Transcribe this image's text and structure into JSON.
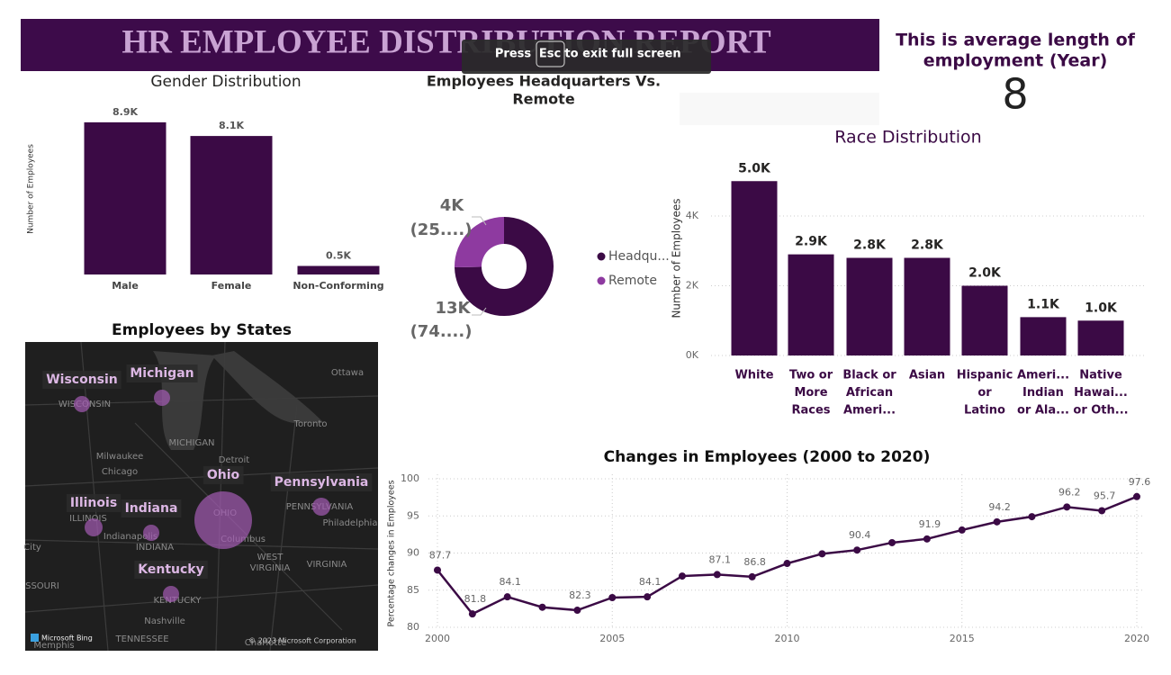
{
  "header": {
    "title": "HR EMPLOYEE DISTRIBUTION REPORT"
  },
  "overlay": {
    "press": "Press",
    "key": "Esc",
    "rest": "to exit full screen"
  },
  "kpi": {
    "label_lines": [
      "This is average length of",
      "employment (Year)"
    ],
    "value": 8
  },
  "map": {
    "title": "Employees by States",
    "states": [
      "Wisconsin",
      "Michigan",
      "Illinois",
      "Indiana",
      "Ohio",
      "Pennsylvania",
      "Kentucky"
    ],
    "places": [
      "WISCONSIN",
      "Ottawa",
      "Toronto",
      "MICHIGAN",
      "Milwaukee",
      "Chicago",
      "Detroit",
      "ILLINOIS",
      "Indianapolis",
      "INDIANA",
      "OHIO",
      "Columbus",
      "PENNSYLVANIA",
      "Philadelphia",
      "WEST",
      "VIRGINIA",
      "VIRGINIA",
      "KENTUCKY",
      "Nashville",
      "TENNESSEE",
      "SSOURI",
      "Memphis",
      "Charlotte",
      "City"
    ],
    "attribution": [
      "Microsoft Bing",
      "© 2023 Microsoft Corporation"
    ]
  },
  "chart_data": [
    {
      "type": "bar",
      "title": "Gender Distribution",
      "y_label": "Number of Employees",
      "categories": [
        "Male",
        "Female",
        "Non-Conforming"
      ],
      "values": [
        8900,
        8100,
        500
      ],
      "value_labels": [
        "8.9K",
        "8.1K",
        "0.5K"
      ],
      "color": "#3b0a45",
      "ylim": [
        0,
        9000
      ]
    },
    {
      "type": "donut",
      "title_lines": [
        "Employees Headquarters Vs.",
        "Remote"
      ],
      "categories": [
        "Headqu...",
        "Remote"
      ],
      "values": [
        13000,
        4400
      ],
      "value_labels": [
        "13K",
        "4K"
      ],
      "percent_labels": [
        "(74....)",
        "(25....)"
      ],
      "colors": [
        "#3b0a45",
        "#8e3aa0"
      ],
      "legend": "right"
    },
    {
      "type": "bar",
      "title": "Race Distribution",
      "y_label": "Number of Employees",
      "categories": [
        [
          "White"
        ],
        [
          "Two or",
          "More",
          "Races"
        ],
        [
          "Black or",
          "African",
          "Ameri..."
        ],
        [
          "Asian"
        ],
        [
          "Hispanic",
          "or",
          "Latino"
        ],
        [
          "Ameri...",
          "Indian",
          "or Ala..."
        ],
        [
          "Native",
          "Hawai...",
          "or Oth..."
        ]
      ],
      "values": [
        5000,
        2900,
        2800,
        2800,
        2000,
        1100,
        1000
      ],
      "value_labels": [
        "5.0K",
        "2.9K",
        "2.8K",
        "2.8K",
        "2.0K",
        "1.1K",
        "1.0K"
      ],
      "color": "#3b0a45",
      "ylim": [
        0,
        5000
      ],
      "yticks": [
        {
          "value": 0,
          "label": "0K"
        },
        {
          "value": 2000,
          "label": "2K"
        },
        {
          "value": 4000,
          "label": "4K"
        }
      ],
      "grid": true
    },
    {
      "type": "line",
      "title": "Changes in Employees (2000 to 2020)",
      "y_label": "Percentage changes in Employees",
      "x": [
        2000,
        2001,
        2002,
        2003,
        2004,
        2005,
        2006,
        2007,
        2008,
        2009,
        2010,
        2011,
        2012,
        2013,
        2014,
        2015,
        2016,
        2017,
        2018,
        2019,
        2020
      ],
      "values": [
        87.7,
        81.8,
        84.1,
        82.7,
        82.3,
        84.0,
        84.1,
        86.9,
        87.1,
        86.8,
        88.6,
        89.9,
        90.4,
        91.4,
        91.9,
        93.1,
        94.2,
        94.9,
        96.2,
        95.7,
        97.6
      ],
      "value_labels": [
        "87.7",
        "81.8",
        "84.1",
        null,
        "82.3",
        null,
        "84.1",
        null,
        "87.1",
        "86.8",
        null,
        null,
        "90.4",
        null,
        "91.9",
        null,
        "94.2",
        null,
        "96.2",
        "95.7",
        "97.6"
      ],
      "color": "#3b0a45",
      "xlim": [
        2000,
        2020
      ],
      "xticks": [
        2000,
        2005,
        2010,
        2015,
        2020
      ],
      "ylim": [
        80,
        100
      ],
      "yticks": [
        80,
        85,
        90,
        95,
        100
      ],
      "grid": true
    }
  ]
}
